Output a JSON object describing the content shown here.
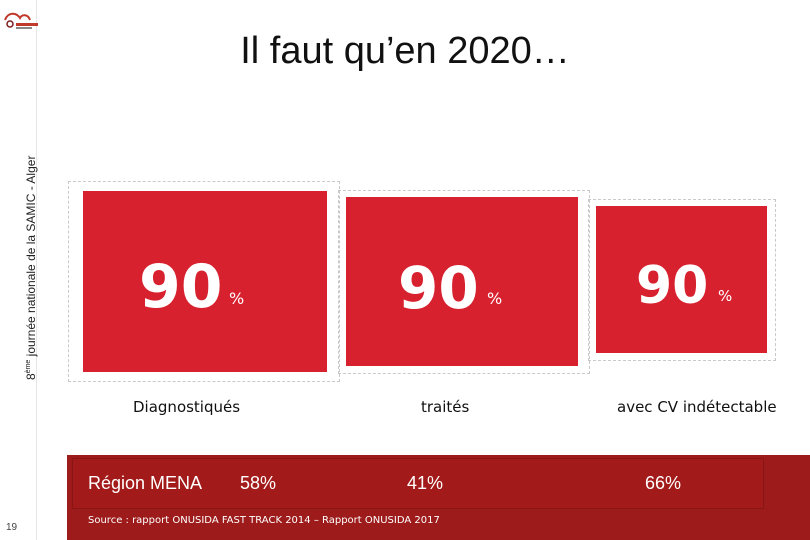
{
  "brand": {
    "primary": "#d8212f",
    "dark": "#9e1b1b"
  },
  "header": {
    "title": "Il faut qu’en 2020…"
  },
  "sidebar": {
    "logo_icon": "corevih-logo",
    "vertical_text": "8ème journée nationale de la SAMIC - Alger",
    "vertical_text_main": "journée nationale de la SAMIC - Alger",
    "vertical_text_num": "8",
    "vertical_text_sup": "ème"
  },
  "slide_number": "19",
  "cards": [
    {
      "value": "90",
      "unit": "%",
      "label": "Diagnostiqués"
    },
    {
      "value": "90",
      "unit": "%",
      "label": "traités"
    },
    {
      "value": "90",
      "unit": "%",
      "label": "avec CV indétectable"
    }
  ],
  "mena": {
    "region": "Région MENA",
    "values": [
      "58%",
      "41%",
      "66%"
    ]
  },
  "source": "Source : rapport ONUSIDA FAST TRACK 2014 – Rapport ONUSIDA 2017"
}
